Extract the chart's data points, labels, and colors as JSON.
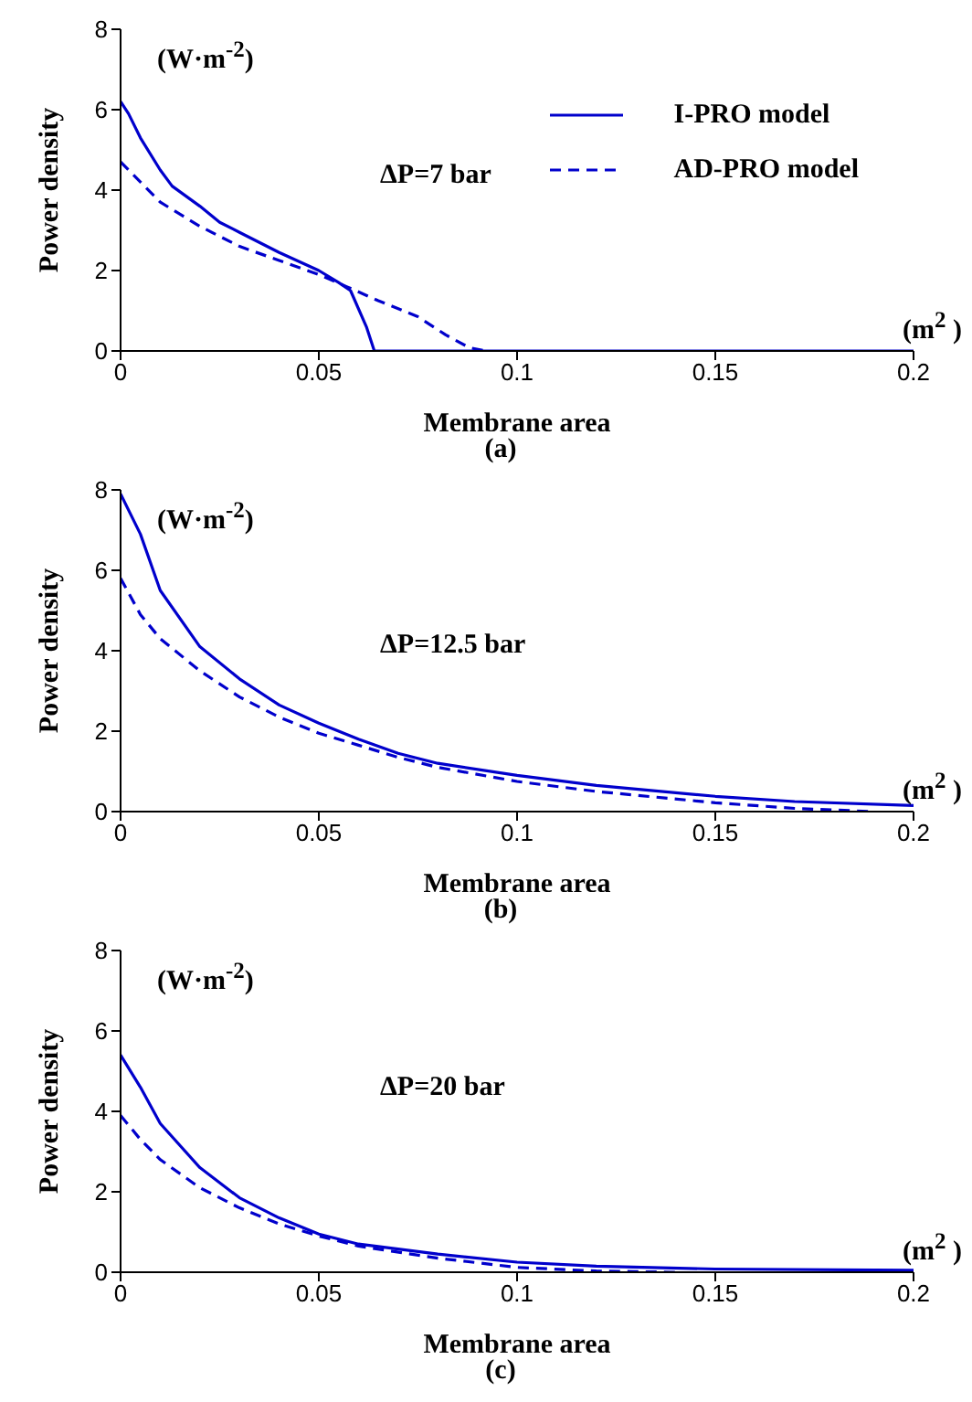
{
  "chart_data": [
    {
      "type": "line",
      "xlabel": "Membrane area",
      "ylabel": "Power density",
      "annotations": [
        "(W·m$^{-2}$)",
        "(m$^{2}$ )",
        "ΔP=7 bar",
        "(a)"
      ],
      "xlim": [
        0,
        0.2
      ],
      "xticks": [
        0,
        0.05,
        0.1,
        0.15,
        0.2
      ],
      "ylim": [
        0,
        8
      ],
      "yticks": [
        0,
        2,
        4,
        6,
        8
      ],
      "legend": "top right",
      "series": [
        {
          "name": "I-PRO model",
          "color": "#0000cc",
          "line_style": "solid",
          "x": [
            0,
            0.002,
            0.005,
            0.01,
            0.013,
            0.02,
            0.025,
            0.03,
            0.04,
            0.05,
            0.055,
            0.058,
            0.062,
            0.064,
            0.2
          ],
          "values": [
            6.2,
            5.9,
            5.3,
            4.5,
            4.1,
            3.6,
            3.2,
            2.95,
            2.45,
            2.0,
            1.7,
            1.5,
            0.6,
            0,
            0
          ]
        },
        {
          "name": "AD-PRO model",
          "color": "#0000cc",
          "line_style": "dashed",
          "x": [
            0,
            0.005,
            0.01,
            0.02,
            0.03,
            0.04,
            0.05,
            0.057,
            0.065,
            0.075,
            0.082,
            0.088,
            0.092
          ],
          "values": [
            4.7,
            4.2,
            3.7,
            3.1,
            2.6,
            2.25,
            1.9,
            1.6,
            1.25,
            0.85,
            0.4,
            0.08,
            0
          ]
        }
      ]
    },
    {
      "type": "line",
      "xlabel": "Membrane area",
      "ylabel": "Power density",
      "annotations": [
        "(W·m$^{-2}$)",
        "(m$^{2}$ )",
        "ΔP=12.5 bar",
        "(b)"
      ],
      "xlim": [
        0,
        0.2
      ],
      "xticks": [
        0,
        0.05,
        0.1,
        0.15,
        0.2
      ],
      "ylim": [
        0,
        8
      ],
      "yticks": [
        0,
        2,
        4,
        6,
        8
      ],
      "series": [
        {
          "color": "#0000cc",
          "line_style": "solid",
          "x": [
            0,
            0.005,
            0.01,
            0.02,
            0.03,
            0.04,
            0.05,
            0.06,
            0.07,
            0.08,
            0.1,
            0.12,
            0.15,
            0.17,
            0.2
          ],
          "values": [
            7.9,
            6.9,
            5.5,
            4.1,
            3.3,
            2.65,
            2.2,
            1.8,
            1.45,
            1.2,
            0.9,
            0.65,
            0.38,
            0.25,
            0.15
          ]
        },
        {
          "color": "#0000cc",
          "line_style": "dashed",
          "x": [
            0,
            0.005,
            0.01,
            0.02,
            0.03,
            0.04,
            0.05,
            0.06,
            0.07,
            0.08,
            0.1,
            0.12,
            0.15,
            0.17,
            0.19
          ],
          "values": [
            5.8,
            4.9,
            4.3,
            3.5,
            2.85,
            2.35,
            1.95,
            1.65,
            1.35,
            1.1,
            0.75,
            0.5,
            0.22,
            0.08,
            0
          ]
        }
      ]
    },
    {
      "type": "line",
      "xlabel": "Membrane area",
      "ylabel": "Power density",
      "annotations": [
        "(W·m$^{-2}$)",
        "(m$^{2}$ )",
        "ΔP=20 bar",
        "(c)"
      ],
      "xlim": [
        0,
        0.2
      ],
      "xticks": [
        0,
        0.05,
        0.1,
        0.15,
        0.2
      ],
      "ylim": [
        0,
        8
      ],
      "yticks": [
        0,
        2,
        4,
        6,
        8
      ],
      "series": [
        {
          "color": "#0000cc",
          "line_style": "solid",
          "x": [
            0,
            0.005,
            0.01,
            0.02,
            0.03,
            0.04,
            0.05,
            0.06,
            0.08,
            0.1,
            0.12,
            0.15,
            0.2
          ],
          "values": [
            5.4,
            4.6,
            3.7,
            2.6,
            1.85,
            1.35,
            0.95,
            0.7,
            0.45,
            0.25,
            0.15,
            0.08,
            0.05
          ]
        },
        {
          "color": "#0000cc",
          "line_style": "dashed",
          "x": [
            0,
            0.005,
            0.01,
            0.02,
            0.03,
            0.04,
            0.05,
            0.06,
            0.08,
            0.1,
            0.12,
            0.14
          ],
          "values": [
            3.9,
            3.3,
            2.8,
            2.1,
            1.6,
            1.2,
            0.9,
            0.65,
            0.35,
            0.12,
            0.03,
            0
          ]
        }
      ]
    }
  ]
}
